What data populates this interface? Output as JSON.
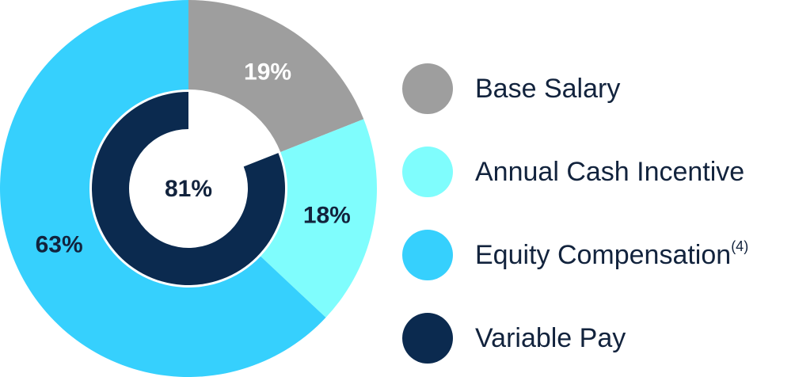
{
  "chart_data": {
    "type": "donut",
    "rings": [
      {
        "categories": [
          "Base Salary",
          "Annual Cash Incentive",
          "Equity Compensation"
        ],
        "superscripts": [
          null,
          null,
          "(4)"
        ],
        "values": [
          19,
          18,
          63
        ],
        "value_labels": [
          "19%",
          "18%",
          "63%"
        ],
        "colors": [
          "#9e9e9e",
          "#7ffdfd",
          "#36d0fd"
        ],
        "label_colors": [
          "#ffffff",
          "#12233d",
          "#12233d"
        ]
      },
      {
        "categories": [
          "Variable Pay"
        ],
        "superscripts": [
          null
        ],
        "values": [
          81
        ],
        "value_labels": [
          "81%"
        ],
        "colors": [
          "#0b2a4f"
        ],
        "label_colors": [
          "#12233d"
        ]
      }
    ]
  }
}
